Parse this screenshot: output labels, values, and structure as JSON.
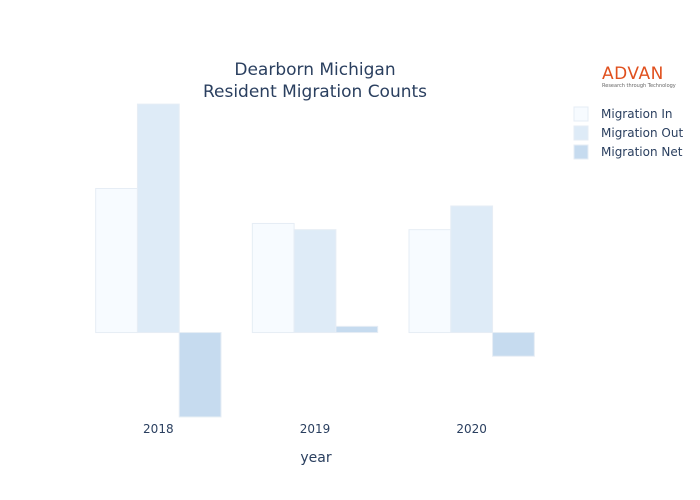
{
  "logo": {
    "wordmark": "ADVAN",
    "tagline": "Research through Technology"
  },
  "chart_data": {
    "type": "bar",
    "title_lines": [
      "Dearborn Michigan",
      "Resident Migration Counts"
    ],
    "xlabel": "year",
    "ylabel": "",
    "categories": [
      "2018",
      "2019",
      "2020"
    ],
    "series": [
      {
        "name": "Migration In",
        "color": "#f7fbff",
        "values": [
          7000,
          5300,
          5000
        ]
      },
      {
        "name": "Migration Out",
        "color": "#deebf7",
        "values": [
          11100,
          5000,
          6150
        ]
      },
      {
        "name": "Migration Net",
        "color": "#c6dbef",
        "values": [
          -4100,
          300,
          -1150
        ]
      }
    ],
    "ylim": [
      -4250,
      11300
    ],
    "y_ticks_shown": false,
    "grid": false,
    "legend_position": "top-right"
  }
}
